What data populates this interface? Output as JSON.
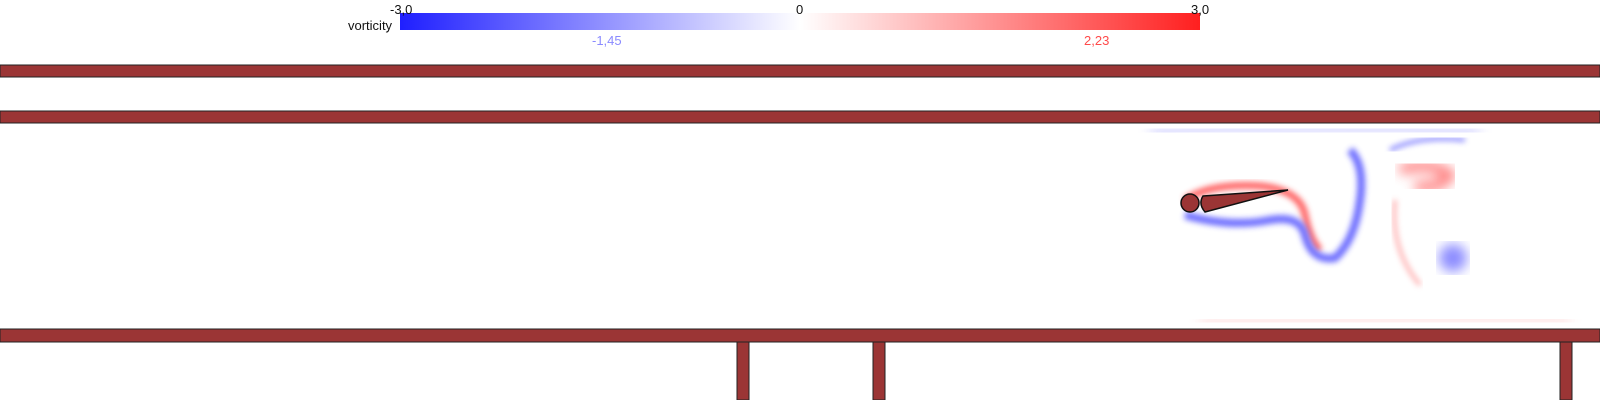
{
  "colorbar": {
    "variable_label": "vorticity",
    "min_label": "-3,0",
    "mid_label": "0",
    "max_label": "3,0",
    "current_min_label": "-1,45",
    "current_max_label": "2,23",
    "colors": {
      "negative": "#1f1fff",
      "zero": "#ffffff",
      "positive": "#ff1f1f",
      "current_min_text": "#8a8aff",
      "current_max_text": "#ff4a4a"
    }
  },
  "walls": {
    "color": "#9b3535"
  }
}
